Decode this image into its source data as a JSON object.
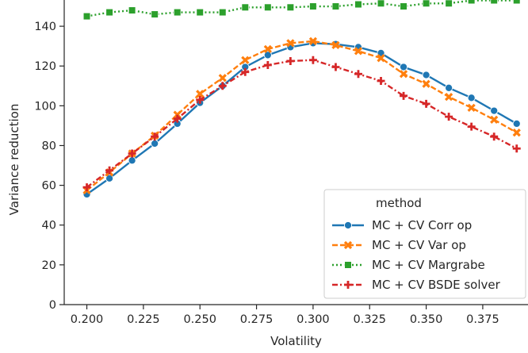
{
  "chart_data": {
    "type": "line",
    "xlabel": "Volatility",
    "ylabel": "Variance reduction",
    "xlim": [
      0.19,
      0.395
    ],
    "ylim": [
      0,
      154
    ],
    "x_ticks": [
      0.2,
      0.225,
      0.25,
      0.275,
      0.3,
      0.325,
      0.35,
      0.375
    ],
    "x_tick_labels": [
      "0.200",
      "0.225",
      "0.250",
      "0.275",
      "0.300",
      "0.325",
      "0.350",
      "0.375"
    ],
    "y_ticks": [
      0,
      20,
      40,
      60,
      80,
      100,
      120,
      140
    ],
    "y_tick_labels": [
      "0",
      "20",
      "40",
      "60",
      "80",
      "100",
      "120",
      "140"
    ],
    "grid": false,
    "legend": {
      "title": "method",
      "placement": "lower-right"
    },
    "x": [
      0.2,
      0.21,
      0.22,
      0.23,
      0.24,
      0.25,
      0.26,
      0.27,
      0.28,
      0.29,
      0.3,
      0.31,
      0.32,
      0.33,
      0.34,
      0.35,
      0.36,
      0.37,
      0.38,
      0.39
    ],
    "series": [
      {
        "name": "MC + CV Corr op",
        "color": "#1f77b4",
        "marker": "circle",
        "dash": "solid",
        "values": [
          55.5,
          63.5,
          72.5,
          81,
          91,
          101.5,
          110,
          119.5,
          125.5,
          129.5,
          131.5,
          131,
          129.5,
          126.5,
          119.5,
          115.5,
          109,
          104,
          97.5,
          91
        ]
      },
      {
        "name": "MC + CV Var op",
        "color": "#ff7f0e",
        "marker": "x",
        "dash": "dashed",
        "values": [
          57.5,
          66.5,
          76,
          85,
          95.5,
          106,
          114,
          123,
          128.5,
          131.5,
          132.5,
          130.5,
          127.5,
          124,
          116,
          111,
          104.5,
          99,
          93,
          86.5
        ]
      },
      {
        "name": "MC + CV Margrabe",
        "color": "#2ca02c",
        "marker": "square",
        "dash": "dotted",
        "values": [
          145,
          147,
          148,
          146,
          147,
          147,
          147,
          149.5,
          149.5,
          149.5,
          150,
          150,
          151,
          151.5,
          150,
          151.5,
          151.5,
          153,
          153,
          153
        ]
      },
      {
        "name": "MC + CV BSDE solver",
        "color": "#d62728",
        "marker": "plus",
        "dash": "dashdot",
        "values": [
          59,
          67.5,
          76,
          84.5,
          93.5,
          103,
          110,
          117,
          120.5,
          122.5,
          123,
          119.5,
          116,
          112.5,
          105,
          101,
          94.5,
          89.5,
          84.5,
          78.5
        ]
      }
    ]
  }
}
